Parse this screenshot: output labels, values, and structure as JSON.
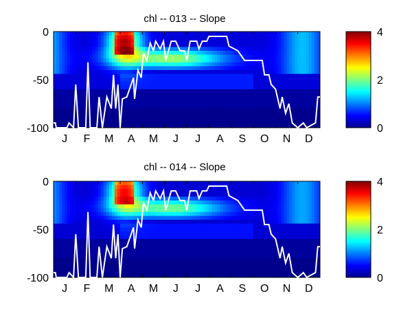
{
  "chart_data": [
    {
      "type": "heatmap",
      "title": "chl -- 013 -- Slope",
      "x_tick_labels": [
        "J",
        "F",
        "M",
        "A",
        "M",
        "J",
        "J",
        "A",
        "S",
        "O",
        "N",
        "D"
      ],
      "y_tick_labels": [
        "0",
        "-50",
        "-100"
      ],
      "y_ticks": [
        0,
        -50,
        -100
      ],
      "ylim": [
        -100,
        0
      ],
      "xlim": [
        0,
        12
      ],
      "colormap": "jet",
      "colorbar": {
        "range": [
          0,
          4
        ],
        "tick_labels": [
          "4",
          "2",
          "0"
        ],
        "ticks": [
          4,
          2,
          0
        ]
      },
      "line_color": "#ffffff",
      "grid": false,
      "legend": "none"
    },
    {
      "type": "heatmap",
      "title": "chl -- 014 -- Slope",
      "x_tick_labels": [
        "J",
        "F",
        "M",
        "A",
        "M",
        "J",
        "J",
        "A",
        "S",
        "O",
        "N",
        "D"
      ],
      "y_tick_labels": [
        "0",
        "-50",
        "-100"
      ],
      "y_ticks": [
        0,
        -50,
        -100
      ],
      "ylim": [
        -100,
        0
      ],
      "xlim": [
        0,
        12
      ],
      "colormap": "jet",
      "colorbar": {
        "range": [
          0,
          4
        ],
        "tick_labels": [
          "4",
          "2",
          "0"
        ],
        "ticks": [
          4,
          2,
          0
        ]
      },
      "line_color": "#ffffff",
      "grid": false,
      "legend": "none"
    }
  ]
}
